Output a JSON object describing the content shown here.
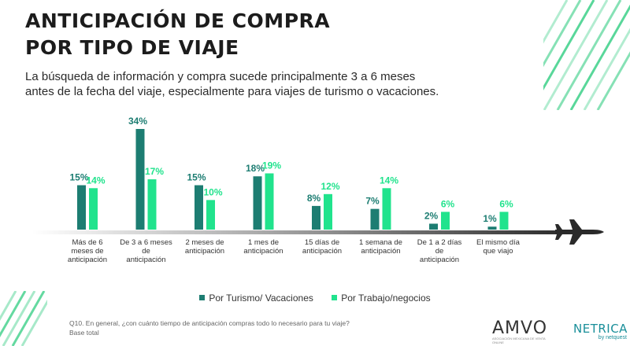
{
  "header": {
    "title_line1": "ANTICIPACIÓN DE COMPRA",
    "title_line2": "POR TIPO DE VIAJE",
    "subtitle_line1": "La búsqueda de información y compra sucede principalmente 3 a 6 meses",
    "subtitle_line2": "antes de la fecha del viaje, especialmente para viajes de turismo o vacaciones."
  },
  "colors": {
    "series1": "#1d7d72",
    "series2": "#21e38d",
    "stripes": "#22c978",
    "axis_fade": "#3a3a3a"
  },
  "chart_data": {
    "type": "bar",
    "categories": [
      [
        "Más de 6",
        "meses de",
        "anticipación"
      ],
      [
        "De 3 a 6 meses",
        "de",
        "anticipación"
      ],
      [
        "2 meses de",
        "anticipación"
      ],
      [
        "1 mes de",
        "anticipación"
      ],
      [
        "15 días de",
        "anticipación"
      ],
      [
        "1 semana de",
        "anticipación"
      ],
      [
        "De 1 a 2 días",
        "de",
        "anticipación"
      ],
      [
        "El mismo día",
        "que viajo"
      ]
    ],
    "series": [
      {
        "name": "Por Turismo/ Vacaciones",
        "values": [
          15,
          34,
          15,
          18,
          8,
          7,
          2,
          1
        ],
        "labels": [
          "15%",
          "34%",
          "15%",
          "18%",
          "8%",
          "7%",
          "2%",
          "1%"
        ]
      },
      {
        "name": "Por Trabajo/negocios",
        "values": [
          14,
          17,
          10,
          19,
          12,
          14,
          6,
          6
        ],
        "labels": [
          "14%",
          "17%",
          "10%",
          "19%",
          "12%",
          "14%",
          "6%",
          "6%"
        ]
      }
    ],
    "ylim": [
      0,
      34
    ],
    "grid": false,
    "legend": "bottom-center"
  },
  "legend": {
    "item1": "Por Turismo/ Vacaciones",
    "item2": "Por Trabajo/negocios"
  },
  "footnote": {
    "question": "Q10. En general, ¿con cuánto tiempo de anticipación compras todo lo necesario para tu viaje?",
    "base": "Base total"
  },
  "logos": {
    "amvo": "AMVO",
    "amvo_tag": "ASOCIACIÓN MEXICANA DE VENTA ONLINE",
    "netrica": "NETRICA",
    "netrica_by": "by netquest"
  }
}
